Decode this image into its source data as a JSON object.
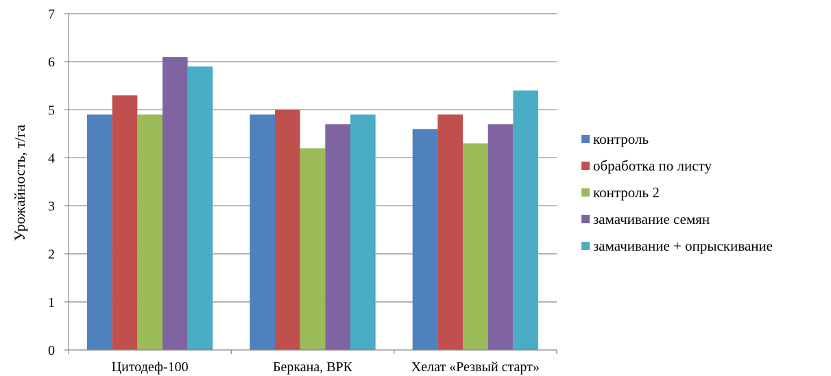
{
  "chart_data": {
    "type": "bar",
    "title": "",
    "xlabel": "",
    "ylabel": "Урожайность,  т/га",
    "ylim": [
      0,
      7
    ],
    "yticks": [
      0,
      1,
      2,
      3,
      4,
      5,
      6,
      7
    ],
    "grid": true,
    "legend_position": "right",
    "categories": [
      "Цитодеф-100",
      "Беркана, ВРК",
      "Хелат «Резвый старт»"
    ],
    "series": [
      {
        "name": "контроль",
        "color": "#4F81BD",
        "values": [
          4.9,
          4.9,
          4.6
        ]
      },
      {
        "name": "обработка по листу",
        "color": "#C0504D",
        "values": [
          5.3,
          5.0,
          4.9
        ]
      },
      {
        "name": "контроль 2",
        "color": "#9BBB59",
        "values": [
          4.9,
          4.2,
          4.3
        ]
      },
      {
        "name": "замачивание  семян",
        "color": "#8064A2",
        "values": [
          6.1,
          4.7,
          4.7
        ]
      },
      {
        "name": "замачивание + опрыскивание",
        "color": "#4BACC6",
        "values": [
          5.9,
          4.9,
          5.4
        ]
      }
    ]
  }
}
